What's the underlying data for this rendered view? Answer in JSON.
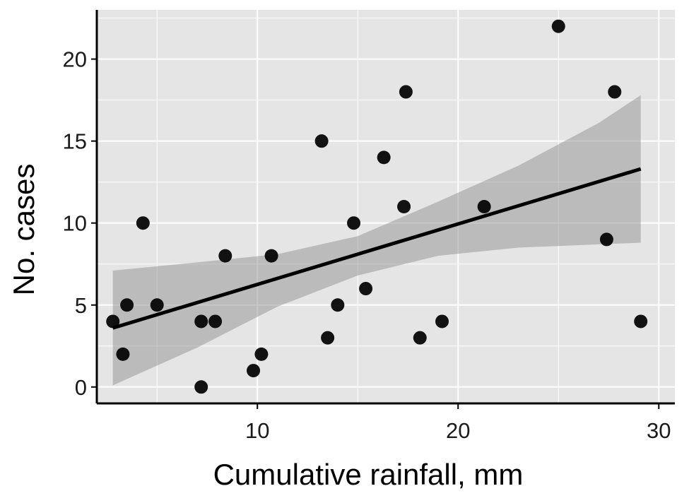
{
  "chart_data": {
    "type": "scatter",
    "title": "",
    "xlabel": "Cumulative rainfall, mm",
    "ylabel": "No. cases",
    "xlim": [
      2.0,
      30.8
    ],
    "ylim": [
      -1.0,
      23.0
    ],
    "x_ticks": [
      10,
      20,
      30
    ],
    "x_tick_labels": [
      "10",
      "20",
      "30"
    ],
    "y_ticks": [
      0,
      5,
      10,
      15,
      20
    ],
    "y_tick_labels": [
      "0",
      "5",
      "10",
      "15",
      "20"
    ],
    "x_minor_grid": [
      5,
      15,
      25
    ],
    "y_minor_grid": [
      2.5,
      7.5,
      12.5,
      17.5,
      22.5
    ],
    "grid": true,
    "legend": "none",
    "points": {
      "x": [
        2.8,
        3.5,
        3.3,
        4.3,
        5.0,
        7.2,
        7.2,
        7.9,
        8.4,
        9.8,
        10.2,
        10.7,
        13.2,
        13.5,
        14.0,
        14.8,
        15.4,
        16.3,
        17.3,
        17.4,
        18.1,
        19.2,
        21.3,
        25.0,
        27.4,
        27.8,
        29.1
      ],
      "y": [
        4,
        5,
        2,
        10,
        5,
        0,
        4,
        4,
        8,
        1,
        2,
        8,
        15,
        3,
        5,
        10,
        6,
        14,
        11,
        18,
        3,
        4,
        11,
        22,
        9,
        18,
        4
      ]
    },
    "trend_line": {
      "x": [
        2.8,
        29.1
      ],
      "y": [
        3.6,
        13.3
      ]
    },
    "confidence_band": {
      "x": [
        2.8,
        7.0,
        11.0,
        15.0,
        19.0,
        23.0,
        27.0,
        29.1
      ],
      "lower": [
        0.1,
        2.4,
        4.9,
        6.8,
        8.0,
        8.5,
        8.7,
        8.8
      ],
      "upper": [
        7.1,
        7.6,
        8.1,
        9.2,
        11.3,
        13.5,
        16.1,
        17.8
      ]
    },
    "colors": {
      "panel_background": "#e5e5e5",
      "grid": "#ffffff",
      "points": "#000000",
      "trend_line": "#000000",
      "band": "#999999",
      "axis": "#000000"
    }
  }
}
